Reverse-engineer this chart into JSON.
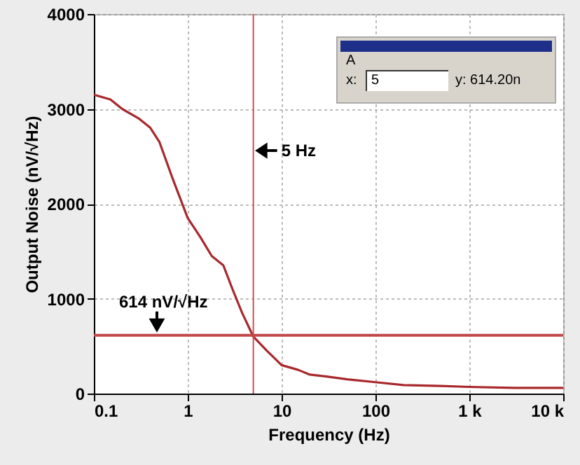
{
  "chart_data": {
    "type": "line",
    "xlabel": "Frequency (Hz)",
    "ylabel": "Output Noise (nV/√Hz)",
    "log": "x",
    "x": [
      0.1,
      0.15,
      0.2,
      0.3,
      0.4,
      0.5,
      0.7,
      1,
      1.36,
      1.8,
      2.4,
      3,
      3.8,
      5,
      7,
      10,
      15,
      20,
      30,
      50,
      100,
      200,
      500,
      1000,
      3000,
      10000
    ],
    "series": [
      {
        "color": "#a8282c",
        "values": [
          3150,
          3100,
          3000,
          2900,
          2800,
          2650,
          2250,
          1850,
          1650,
          1450,
          1350,
          1100,
          850,
          600,
          450,
          300,
          250,
          200,
          180,
          150,
          120,
          90,
          80,
          70,
          60,
          60
        ]
      }
    ],
    "xlim": [
      0.1,
      10000
    ],
    "ylim": [
      0,
      4000
    ],
    "xticks": [
      0.1,
      1,
      10,
      100,
      {
        "value": 1000,
        "label": "1 k"
      },
      {
        "value": 10000,
        "label": "10 k"
      }
    ],
    "yticks": [
      0,
      1000,
      2000,
      3000,
      4000
    ],
    "grid": true,
    "line_style": "solid",
    "marker": "none",
    "ref_lines": [
      {
        "axis": "x",
        "value": 5,
        "label": "5 Hz",
        "color": "#d05050"
      },
      {
        "axis": "y",
        "value": 614,
        "label": "614 nV/√Hz",
        "color": "#c04848"
      }
    ],
    "annotations": [
      "A",
      "x:",
      "5",
      "y: 614.20n"
    ]
  }
}
